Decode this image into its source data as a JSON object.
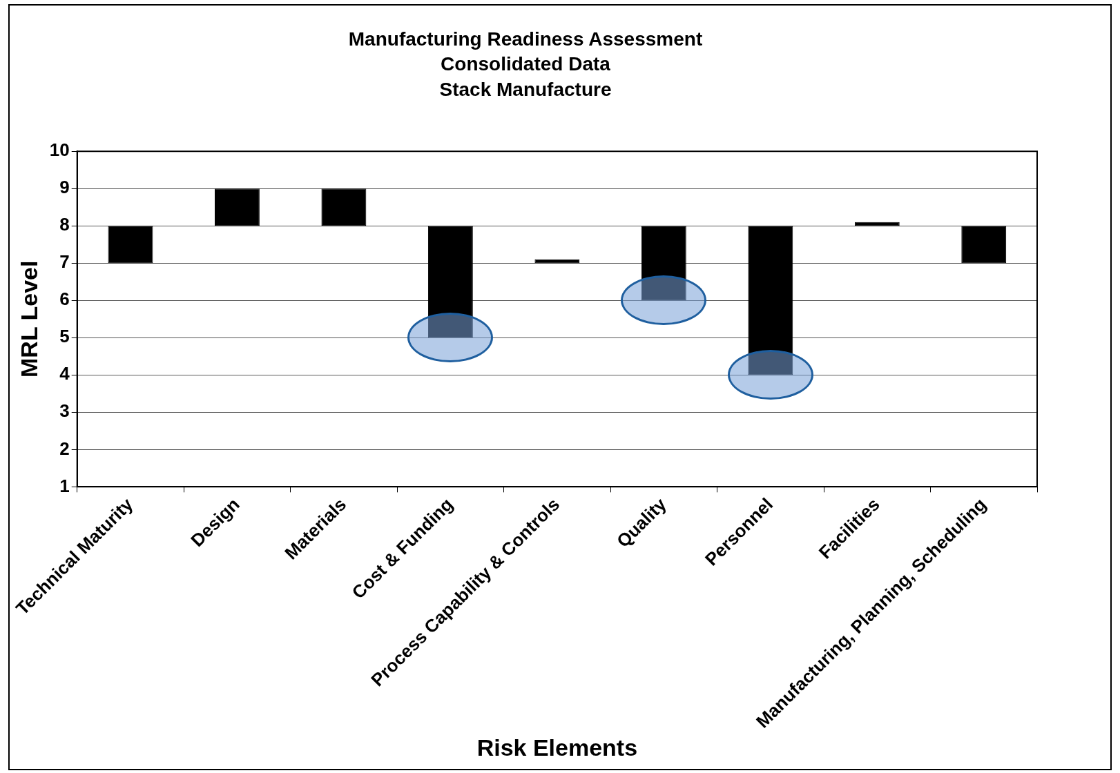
{
  "chart_data": {
    "type": "bar",
    "title": "Manufacturing Readiness Assessment\nConsolidated Data\nStack Manufacture",
    "xlabel": "Risk Elements",
    "ylabel": "MRL Level",
    "categories": [
      "Technical Maturity",
      "Design",
      "Materials",
      "Cost & Funding",
      "Process Capability & Controls",
      "Quality",
      "Personnel",
      "Facilities",
      "Manufacturing, Planning, Scheduling"
    ],
    "base": [
      7,
      8,
      8,
      5,
      7,
      6,
      4,
      8,
      7
    ],
    "values": [
      1,
      1,
      1,
      3,
      0.1,
      2,
      4,
      0.1,
      1
    ],
    "color": "#000000",
    "ylim": [
      1,
      10
    ],
    "yticks": [
      1,
      2,
      3,
      4,
      5,
      6,
      7,
      8,
      9,
      10
    ],
    "grid": "y",
    "legend": false
  }
}
